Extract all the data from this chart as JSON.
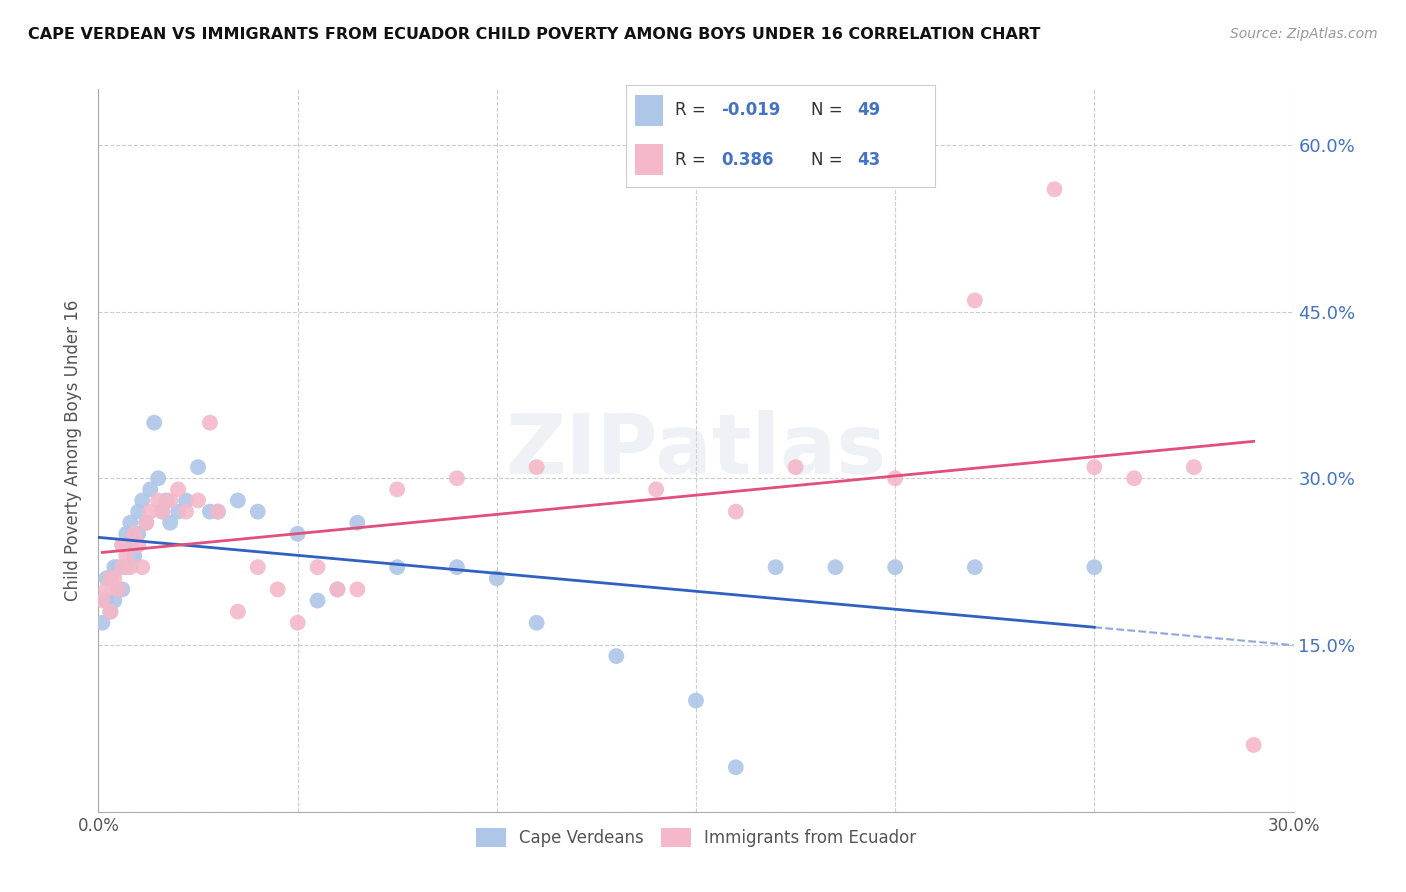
{
  "title": "CAPE VERDEAN VS IMMIGRANTS FROM ECUADOR CHILD POVERTY AMONG BOYS UNDER 16 CORRELATION CHART",
  "source": "Source: ZipAtlas.com",
  "ylabel": "Child Poverty Among Boys Under 16",
  "xlim": [
    0.0,
    0.3
  ],
  "ylim": [
    0.0,
    0.65
  ],
  "x_ticks": [
    0.0,
    0.05,
    0.1,
    0.15,
    0.2,
    0.25,
    0.3
  ],
  "y_ticks": [
    0.0,
    0.15,
    0.3,
    0.45,
    0.6
  ],
  "y_tick_labels": [
    "",
    "15.0%",
    "30.0%",
    "45.0%",
    "60.0%"
  ],
  "cape_verdean_color": "#aec6e8",
  "ecuador_color": "#f4b8c8",
  "cape_verdean_line_color": "#3060c0",
  "ecuador_line_color": "#e0507a",
  "cape_verdean_R": -0.019,
  "cape_verdean_N": 49,
  "ecuador_R": 0.386,
  "ecuador_N": 43,
  "legend_label_1": "Cape Verdeans",
  "legend_label_2": "Immigrants from Ecuador",
  "watermark": "ZIPatlas",
  "cv_accent_color": "#4472c4",
  "eq_accent_color": "#e84b7a",
  "cape_verdean_x": [
    0.001,
    0.002,
    0.002,
    0.003,
    0.003,
    0.004,
    0.004,
    0.005,
    0.005,
    0.006,
    0.006,
    0.007,
    0.007,
    0.008,
    0.008,
    0.009,
    0.01,
    0.01,
    0.011,
    0.012,
    0.013,
    0.014,
    0.015,
    0.016,
    0.017,
    0.018,
    0.02,
    0.022,
    0.025,
    0.028,
    0.03,
    0.035,
    0.04,
    0.05,
    0.055,
    0.06,
    0.065,
    0.075,
    0.09,
    0.1,
    0.11,
    0.13,
    0.15,
    0.16,
    0.17,
    0.185,
    0.2,
    0.22,
    0.25
  ],
  "cape_verdean_y": [
    0.17,
    0.19,
    0.21,
    0.18,
    0.21,
    0.19,
    0.22,
    0.2,
    0.22,
    0.2,
    0.24,
    0.22,
    0.25,
    0.24,
    0.26,
    0.23,
    0.25,
    0.27,
    0.28,
    0.26,
    0.29,
    0.35,
    0.3,
    0.27,
    0.28,
    0.26,
    0.27,
    0.28,
    0.31,
    0.27,
    0.27,
    0.28,
    0.27,
    0.25,
    0.19,
    0.2,
    0.26,
    0.22,
    0.22,
    0.21,
    0.17,
    0.14,
    0.1,
    0.04,
    0.22,
    0.22,
    0.22,
    0.22,
    0.22
  ],
  "ecuador_x": [
    0.001,
    0.002,
    0.003,
    0.003,
    0.004,
    0.005,
    0.006,
    0.006,
    0.007,
    0.008,
    0.009,
    0.01,
    0.011,
    0.012,
    0.013,
    0.015,
    0.016,
    0.018,
    0.02,
    0.022,
    0.025,
    0.028,
    0.03,
    0.035,
    0.04,
    0.045,
    0.05,
    0.055,
    0.06,
    0.065,
    0.075,
    0.09,
    0.11,
    0.14,
    0.16,
    0.175,
    0.2,
    0.22,
    0.24,
    0.25,
    0.26,
    0.275,
    0.29
  ],
  "ecuador_y": [
    0.19,
    0.2,
    0.18,
    0.21,
    0.21,
    0.2,
    0.22,
    0.24,
    0.23,
    0.22,
    0.25,
    0.24,
    0.22,
    0.26,
    0.27,
    0.28,
    0.27,
    0.28,
    0.29,
    0.27,
    0.28,
    0.35,
    0.27,
    0.18,
    0.22,
    0.2,
    0.17,
    0.22,
    0.2,
    0.2,
    0.29,
    0.3,
    0.31,
    0.29,
    0.27,
    0.31,
    0.3,
    0.46,
    0.56,
    0.31,
    0.3,
    0.31,
    0.06
  ]
}
